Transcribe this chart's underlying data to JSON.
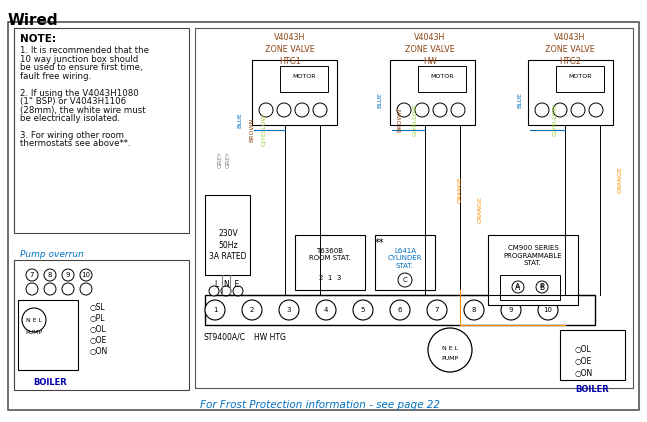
{
  "title": "Wired",
  "bg_color": "#ffffff",
  "border_color": "#000000",
  "note_text": "NOTE:",
  "note_lines": [
    "1. It is recommended that the",
    "10 way junction box should",
    "be used to ensure first time,",
    "fault free wiring.",
    "",
    "2. If using the V4043H1080",
    "(1\" BSP) or V4043H1106",
    "(28mm), the white wire must",
    "be electrically isolated.",
    "",
    "3. For wiring other room",
    "thermostats see above**."
  ],
  "pump_overrun_label": "Pump overrun",
  "footer_text": "For Frost Protection information - see page 22",
  "zone_labels": [
    "V4043H\nZONE VALVE\nHTG1",
    "V4043H\nZONE VALVE\nHW",
    "V4043H\nZONE VALVE\nHTG2"
  ],
  "voltage_label": "230V\n50Hz\n3A RATED",
  "st9400_label": "ST9400A/C",
  "hw_htg_label": "HW HTG",
  "boiler_label": "BOILER",
  "pump_label": "PUMP",
  "t6360b_label": "T6360B\nROOM STAT.",
  "l641a_label": "L641A\nCYLINDER\nSTAT.",
  "cm900_label": "CM900 SERIES\nPROGRAMMABLE\nSTAT.",
  "motor_label": "MOTOR",
  "wire_colors": {
    "grey": "#808080",
    "blue": "#0070C0",
    "brown": "#8B4513",
    "yellow_green": "#9ACD32",
    "orange": "#FF8C00",
    "black": "#000000"
  }
}
